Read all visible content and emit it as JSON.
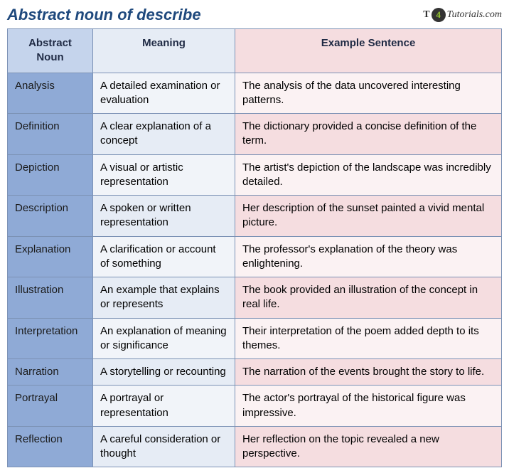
{
  "title": "Abstract noun of describe",
  "brand": {
    "prefix": "T",
    "badge": "4",
    "suffix": "Tutorials.com"
  },
  "columns": [
    "Abstract Noun",
    "Meaning",
    "Example Sentence"
  ],
  "rows": [
    {
      "noun": "Analysis",
      "meaning": "A detailed examination or evaluation",
      "example": "The analysis of the data uncovered interesting patterns."
    },
    {
      "noun": "Definition",
      "meaning": "A clear explanation of a concept",
      "example": "The dictionary provided a concise definition of the term."
    },
    {
      "noun": "Depiction",
      "meaning": "A visual or artistic representation",
      "example": "The artist's depiction of the landscape was incredibly detailed."
    },
    {
      "noun": "Description",
      "meaning": "A spoken or written representation",
      "example": "Her description of the sunset painted a vivid mental picture."
    },
    {
      "noun": "Explanation",
      "meaning": "A clarification or account of something",
      "example": "The professor's explanation of the theory was enlightening."
    },
    {
      "noun": "Illustration",
      "meaning": "An example that explains or represents",
      "example": "The book provided an illustration of the concept in real life."
    },
    {
      "noun": "Interpretation",
      "meaning": "An explanation of meaning or significance",
      "example": "Their interpretation of the poem added depth to its themes."
    },
    {
      "noun": "Narration",
      "meaning": "A storytelling or recounting",
      "example": "The narration of the events brought the story to life."
    },
    {
      "noun": "Portrayal",
      "meaning": "A portrayal or representation",
      "example": "The actor's portrayal of the historical figure was impressive."
    },
    {
      "noun": "Reflection",
      "meaning": "A careful consideration or thought",
      "example": "Her reflection on the topic revealed a new perspective."
    }
  ],
  "colors": {
    "title": "#1f497d",
    "border": "#7c92b5",
    "header_noun": "#c5d4ec",
    "header_meaning": "#e6ecf5",
    "header_example": "#f5dde0",
    "cell_noun": "#8faad6",
    "cell_meaning_odd": "#f1f4f9",
    "cell_meaning_even": "#e6ecf5",
    "cell_example_odd": "#fbf2f3",
    "cell_example_even": "#f5dde0"
  }
}
